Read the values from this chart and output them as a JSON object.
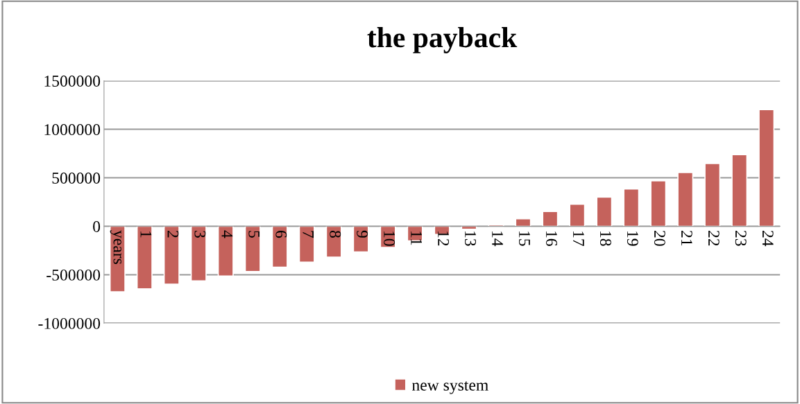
{
  "chart_data": {
    "type": "bar",
    "title": "the payback",
    "categories": [
      "years",
      "1",
      "2",
      "3",
      "4",
      "5",
      "6",
      "7",
      "8",
      "9",
      "10",
      "11",
      "12",
      "13",
      "14",
      "15",
      "16",
      "17",
      "18",
      "19",
      "20",
      "21",
      "22",
      "23",
      "24"
    ],
    "series": [
      {
        "name": "new system",
        "color": "#c5625c",
        "values": [
          -677000,
          -645000,
          -597000,
          -563000,
          -514000,
          -467000,
          -423000,
          -370000,
          -319000,
          -266000,
          -219000,
          -150000,
          -85000,
          -32000,
          15000,
          78000,
          152000,
          228000,
          301000,
          385000,
          468000,
          554000,
          647000,
          738000,
          1203000
        ]
      }
    ],
    "ylim": [
      -1000000,
      1500000
    ],
    "yticks": [
      -1000000,
      -500000,
      0,
      500000,
      1000000,
      1500000
    ],
    "grid": "y",
    "legend": "bottom"
  }
}
